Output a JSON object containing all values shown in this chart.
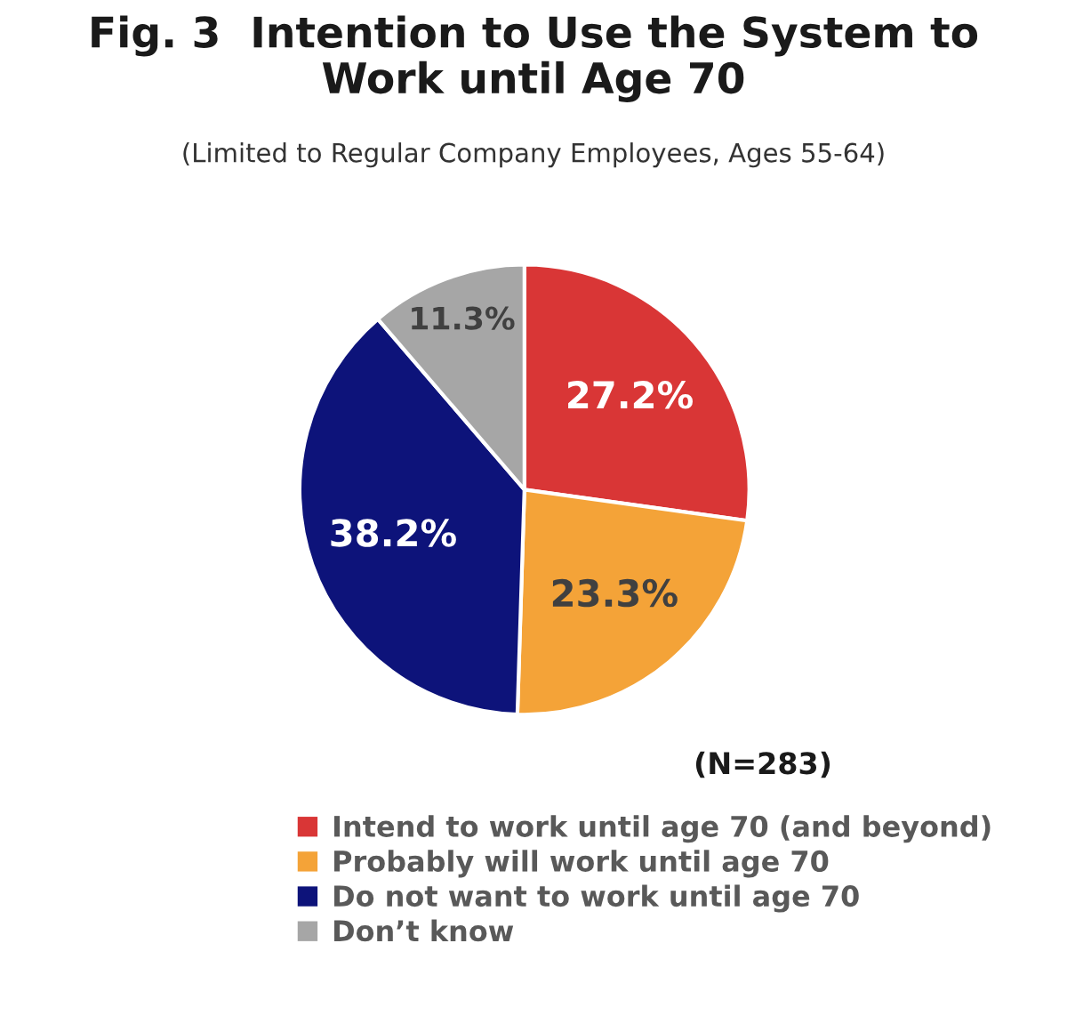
{
  "chart_data": {
    "type": "pie",
    "title": "Fig. 3  Intention to Use the System to\nWork until Age 70",
    "subtitle": "(Limited to Regular Company Employees, Ages 55-64)",
    "categories": [
      "Intend to work until age 70 (and beyond)",
      "Probably will work until age 70",
      "Do not want to work until age 70",
      "Don’t know"
    ],
    "values": [
      27.2,
      23.3,
      38.2,
      11.3
    ],
    "value_labels": [
      "27.2%",
      "23.3%",
      "38.2%",
      "11.3%"
    ],
    "colors": [
      "#d93636",
      "#f4a338",
      "#0d137a",
      "#a6a6a6"
    ],
    "annotations": [
      "(N=283)"
    ],
    "legend": "bottom"
  }
}
